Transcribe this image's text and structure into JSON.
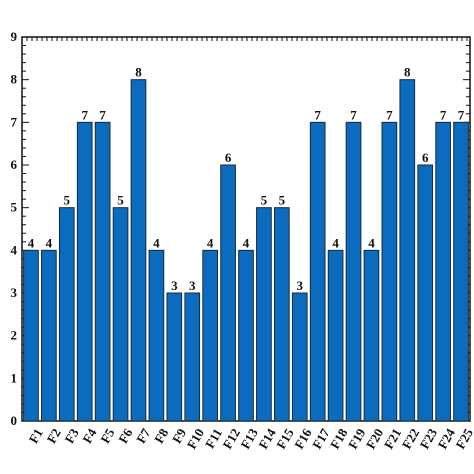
{
  "chart_data": {
    "type": "bar",
    "categories": [
      "F1",
      "F2",
      "F3",
      "F4",
      "F5",
      "F6",
      "F7",
      "F8",
      "F9",
      "F10",
      "F11",
      "F12",
      "F13",
      "F14",
      "F15",
      "F16",
      "F17",
      "F18",
      "F19",
      "F20",
      "F21",
      "F22",
      "F23",
      "F24",
      "F25"
    ],
    "values": [
      4,
      4,
      5,
      7,
      7,
      5,
      8,
      4,
      3,
      3,
      4,
      6,
      4,
      5,
      5,
      3,
      7,
      4,
      7,
      4,
      7,
      8,
      6,
      7,
      7
    ],
    "title": "",
    "xlabel": "",
    "ylabel": "",
    "ylim": [
      0,
      9
    ],
    "yticks": [
      "0",
      "1",
      "2",
      "3",
      "4",
      "5",
      "6",
      "7",
      "8",
      "9"
    ],
    "grid": false,
    "data_labels": true,
    "bar_color": "#0a6bbf"
  }
}
